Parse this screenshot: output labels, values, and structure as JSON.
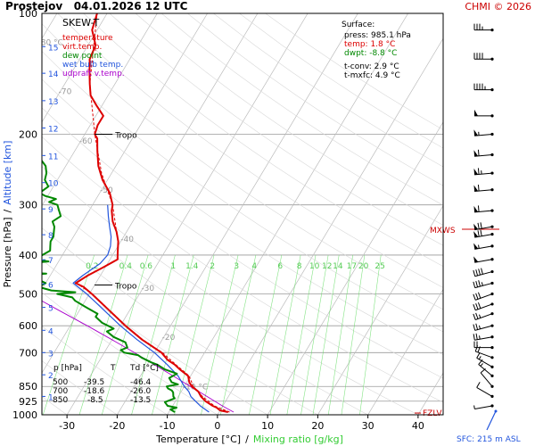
{
  "header": {
    "station": "Prostejov",
    "datetime": "04.01.2026 12 UTC",
    "copyright": "CHMI © 2026"
  },
  "chart_data": {
    "type": "line",
    "title": "SKEW-T",
    "xlabel": "Temperature [°C]",
    "xlabel_sep": "/",
    "xlabel2": "Mixing ratio [g/kg]",
    "ylabel": "Pressure [hPa]",
    "ylabel_sep": "/",
    "ylabel2": "Altitude [km]",
    "xlim": [
      -35,
      45
    ],
    "ylim": [
      1000,
      100
    ],
    "x_ticks": [
      -30,
      -20,
      -10,
      0,
      10,
      20,
      30,
      40
    ],
    "p_ticks": [
      100,
      200,
      300,
      400,
      500,
      600,
      700,
      850,
      925,
      1000
    ],
    "km_ticks": [
      {
        "km": "1",
        "p": 900
      },
      {
        "km": "2",
        "p": 795
      },
      {
        "km": "3",
        "p": 700
      },
      {
        "km": "4",
        "p": 616
      },
      {
        "km": "5",
        "p": 540
      },
      {
        "km": "6",
        "p": 472
      },
      {
        "km": "7",
        "p": 411
      },
      {
        "km": "8",
        "p": 356
      },
      {
        "km": "9",
        "p": 307
      },
      {
        "km": "10",
        "p": 264
      },
      {
        "km": "11",
        "p": 226
      },
      {
        "km": "12",
        "p": 193
      },
      {
        "km": "13",
        "p": 165
      },
      {
        "km": "14",
        "p": 141
      },
      {
        "km": "15",
        "p": 121
      }
    ],
    "isotherm_labels": [
      {
        "t": -80,
        "label": "-80 °C"
      },
      {
        "t": -70,
        "label": "-70"
      },
      {
        "t": -60,
        "label": "-60"
      },
      {
        "t": -50,
        "label": "-50"
      },
      {
        "t": -40,
        "label": "-40"
      },
      {
        "t": -30,
        "label": "-30"
      },
      {
        "t": -20,
        "label": "-20"
      },
      {
        "t": -10,
        "label": "-10 °C"
      }
    ],
    "mixing_ratio_labels": [
      "0.2",
      "0.4",
      "0.6",
      "1",
      "1.4",
      "2",
      "3",
      "4",
      "6",
      "8",
      "10",
      "12",
      "14",
      "17",
      "20",
      "25"
    ],
    "mixing_ratio_values": [
      0.2,
      0.4,
      0.6,
      1,
      1.4,
      2,
      3,
      4,
      6,
      8,
      10,
      12,
      14,
      17,
      20,
      25
    ],
    "legend": [
      {
        "label": "temperature",
        "color": "#dd0000"
      },
      {
        "label": "virt.temp.",
        "color": "#dd0000"
      },
      {
        "label": "dew point",
        "color": "#008800"
      },
      {
        "label": "wet bulb temp.",
        "color": "#2255dd"
      },
      {
        "label": "udpraft v.temp.",
        "color": "#aa00cc"
      }
    ],
    "surface": {
      "heading": "Surface:",
      "lines": [
        {
          "text": "press: 985.1 hPa",
          "color": "#000000"
        },
        {
          "text": "temp: 1.8 °C",
          "color": "#dd0000"
        },
        {
          "text": "dwpt: -8.8 °C",
          "color": "#008800"
        }
      ],
      "extra": [
        "t-conv: 2.9 °C",
        "t-mxfc: 4.9 °C"
      ]
    },
    "table": {
      "header": [
        "p [hPa]",
        "T",
        "Td [°C]"
      ],
      "rows": [
        [
          "500",
          "-39.5",
          "-46.4"
        ],
        [
          "700",
          "-18.6",
          "-26.0"
        ],
        [
          "850",
          "-8.5",
          "-13.5"
        ]
      ]
    },
    "annotations": {
      "tropo_label": "Tropo",
      "tropo_levels": [
        {
          "p": 200,
          "t": -55
        },
        {
          "p": 475,
          "t": -37
        }
      ],
      "mxws_label": "MXWS",
      "mxws_p": 345,
      "fzlv_label": "FZLV",
      "fzlv_p": 990,
      "sfc_label": "SFC: 215 m ASL"
    },
    "temperature": [
      [
        985,
        1.8
      ],
      [
        975,
        0
      ],
      [
        960,
        -1
      ],
      [
        950,
        -2
      ],
      [
        925,
        -4
      ],
      [
        900,
        -5.5
      ],
      [
        875,
        -6.6
      ],
      [
        850,
        -8.5
      ],
      [
        830,
        -9.5
      ],
      [
        800,
        -10.5
      ],
      [
        770,
        -13
      ],
      [
        750,
        -14.5
      ],
      [
        730,
        -16.5
      ],
      [
        700,
        -18.6
      ],
      [
        650,
        -24
      ],
      [
        600,
        -29
      ],
      [
        550,
        -34
      ],
      [
        500,
        -39.5
      ],
      [
        480,
        -42
      ],
      [
        470,
        -44
      ],
      [
        450,
        -42.5
      ],
      [
        430,
        -40.5
      ],
      [
        410,
        -38.5
      ],
      [
        400,
        -39
      ],
      [
        390,
        -39.5
      ],
      [
        370,
        -40.5
      ],
      [
        350,
        -42
      ],
      [
        330,
        -44
      ],
      [
        310,
        -45.5
      ],
      [
        300,
        -46
      ],
      [
        280,
        -48
      ],
      [
        260,
        -51
      ],
      [
        240,
        -53.5
      ],
      [
        220,
        -55.5
      ],
      [
        205,
        -57
      ],
      [
        200,
        -58
      ],
      [
        190,
        -58.5
      ],
      [
        180,
        -58.5
      ],
      [
        170,
        -61
      ],
      [
        160,
        -63.5
      ],
      [
        150,
        -65
      ],
      [
        140,
        -66.5
      ],
      [
        130,
        -68
      ],
      [
        120,
        -68.5
      ],
      [
        110,
        -71
      ],
      [
        100,
        -72
      ]
    ],
    "virtual_temperature": [
      [
        985,
        2.1
      ],
      [
        950,
        -1.7
      ],
      [
        900,
        -5.2
      ],
      [
        850,
        -8.2
      ],
      [
        800,
        -10.3
      ],
      [
        750,
        -14.3
      ],
      [
        700,
        -18.4
      ],
      [
        650,
        -23.9
      ],
      [
        600,
        -28.9
      ],
      [
        550,
        -33.9
      ],
      [
        500,
        -39.4
      ],
      [
        470,
        -43.9
      ],
      [
        450,
        -42.4
      ],
      [
        410,
        -38.5
      ],
      [
        400,
        -39
      ],
      [
        370,
        -40.5
      ],
      [
        350,
        -42
      ],
      [
        300,
        -46
      ],
      [
        250,
        -52
      ],
      [
        200,
        -58
      ],
      [
        150,
        -65
      ],
      [
        100,
        -72
      ]
    ],
    "wet_bulb": [
      [
        985,
        -2
      ],
      [
        950,
        -4.5
      ],
      [
        925,
        -6
      ],
      [
        900,
        -7.5
      ],
      [
        875,
        -8.5
      ],
      [
        850,
        -10
      ],
      [
        800,
        -12.5
      ],
      [
        750,
        -16
      ],
      [
        700,
        -20
      ],
      [
        650,
        -25
      ],
      [
        600,
        -30
      ],
      [
        550,
        -35
      ],
      [
        500,
        -40.5
      ],
      [
        470,
        -44.5
      ],
      [
        450,
        -43.5
      ],
      [
        420,
        -41.5
      ],
      [
        400,
        -41
      ],
      [
        380,
        -41.5
      ],
      [
        360,
        -42.5
      ],
      [
        340,
        -44
      ],
      [
        320,
        -45.5
      ],
      [
        300,
        -47
      ]
    ],
    "dew_point": [
      [
        985,
        -8.8
      ],
      [
        970,
        -10
      ],
      [
        960,
        -9
      ],
      [
        950,
        -11
      ],
      [
        930,
        -12
      ],
      [
        910,
        -10.5
      ],
      [
        900,
        -11
      ],
      [
        880,
        -11.5
      ],
      [
        870,
        -12
      ],
      [
        860,
        -13
      ],
      [
        850,
        -13.5
      ],
      [
        840,
        -11.5
      ],
      [
        830,
        -13
      ],
      [
        810,
        -14
      ],
      [
        790,
        -13
      ],
      [
        770,
        -16
      ],
      [
        750,
        -18
      ],
      [
        740,
        -19.5
      ],
      [
        720,
        -22
      ],
      [
        710,
        -23
      ],
      [
        700,
        -26
      ],
      [
        690,
        -27
      ],
      [
        680,
        -26
      ],
      [
        660,
        -27
      ],
      [
        640,
        -30
      ],
      [
        620,
        -32
      ],
      [
        610,
        -31
      ],
      [
        590,
        -34
      ],
      [
        570,
        -36
      ],
      [
        560,
        -36
      ],
      [
        540,
        -39
      ],
      [
        520,
        -42
      ],
      [
        510,
        -43
      ],
      [
        500,
        -46.4
      ],
      [
        495,
        -43
      ],
      [
        490,
        -48
      ],
      [
        480,
        -51
      ],
      [
        470,
        -50
      ],
      [
        460,
        -52
      ],
      [
        455,
        -54
      ],
      [
        450,
        -56
      ],
      [
        445,
        -51
      ],
      [
        440,
        -57
      ],
      [
        435,
        -54
      ],
      [
        430,
        -59
      ],
      [
        425,
        -55
      ],
      [
        420,
        -57
      ],
      [
        415,
        -52
      ],
      [
        410,
        -55
      ],
      [
        400,
        -54
      ],
      [
        390,
        -53
      ],
      [
        380,
        -53.5
      ],
      [
        370,
        -54
      ],
      [
        360,
        -54
      ],
      [
        350,
        -54.5
      ],
      [
        340,
        -55
      ],
      [
        330,
        -56
      ],
      [
        320,
        -55
      ],
      [
        310,
        -56
      ],
      [
        300,
        -57
      ],
      [
        295,
        -59
      ],
      [
        290,
        -58
      ],
      [
        285,
        -60.5
      ],
      [
        280,
        -62
      ],
      [
        270,
        -61
      ],
      [
        260,
        -62.5
      ],
      [
        250,
        -63
      ],
      [
        240,
        -64
      ],
      [
        230,
        -66
      ],
      [
        220,
        -68
      ],
      [
        210,
        -69
      ],
      [
        200,
        -71
      ],
      [
        190,
        -72
      ],
      [
        180,
        -74
      ],
      [
        170,
        -76
      ],
      [
        160,
        -78
      ],
      [
        150,
        -80
      ],
      [
        140,
        -81
      ],
      [
        130,
        -83
      ],
      [
        120,
        -85
      ],
      [
        110,
        -86
      ],
      [
        100,
        -87
      ]
    ],
    "parcel": [
      [
        985,
        2.9
      ],
      [
        950,
        -0.1
      ],
      [
        900,
        -4.3
      ],
      [
        850,
        -8.8
      ],
      [
        800,
        -13.5
      ],
      [
        750,
        -18.6
      ],
      [
        700,
        -24
      ],
      [
        650,
        -30
      ],
      [
        600,
        -36.6
      ],
      [
        550,
        -44
      ],
      [
        500,
        -52
      ],
      [
        450,
        -61
      ],
      [
        400,
        -71
      ],
      [
        350,
        -81
      ],
      [
        300,
        -92
      ]
    ],
    "wind_levels": [
      {
        "p": 110,
        "dir": 270,
        "speed": 35
      },
      {
        "p": 130,
        "dir": 270,
        "speed": 40
      },
      {
        "p": 155,
        "dir": 270,
        "speed": 45
      },
      {
        "p": 180,
        "dir": 270,
        "speed": 50
      },
      {
        "p": 200,
        "dir": 265,
        "speed": 55
      },
      {
        "p": 225,
        "dir": 265,
        "speed": 60
      },
      {
        "p": 250,
        "dir": 265,
        "speed": 65
      },
      {
        "p": 275,
        "dir": 265,
        "speed": 60
      },
      {
        "p": 310,
        "dir": 265,
        "speed": 60
      },
      {
        "p": 340,
        "dir": 260,
        "speed": 70
      },
      {
        "p": 355,
        "dir": 260,
        "speed": 70
      },
      {
        "p": 380,
        "dir": 260,
        "speed": 55
      },
      {
        "p": 410,
        "dir": 260,
        "speed": 50
      },
      {
        "p": 440,
        "dir": 255,
        "speed": 40
      },
      {
        "p": 470,
        "dir": 255,
        "speed": 35
      },
      {
        "p": 500,
        "dir": 250,
        "speed": 30
      },
      {
        "p": 530,
        "dir": 250,
        "speed": 30
      },
      {
        "p": 560,
        "dir": 250,
        "speed": 25
      },
      {
        "p": 600,
        "dir": 255,
        "speed": 25
      },
      {
        "p": 640,
        "dir": 260,
        "speed": 25
      },
      {
        "p": 680,
        "dir": 270,
        "speed": 20
      },
      {
        "p": 720,
        "dir": 290,
        "speed": 20
      },
      {
        "p": 760,
        "dir": 300,
        "speed": 15
      },
      {
        "p": 800,
        "dir": 310,
        "speed": 15
      },
      {
        "p": 850,
        "dir": 320,
        "speed": 10
      },
      {
        "p": 900,
        "dir": 300,
        "speed": 10
      },
      {
        "p": 950,
        "dir": 260,
        "speed": 5
      }
    ],
    "hodo_color": "#2255dd",
    "grid": true
  }
}
